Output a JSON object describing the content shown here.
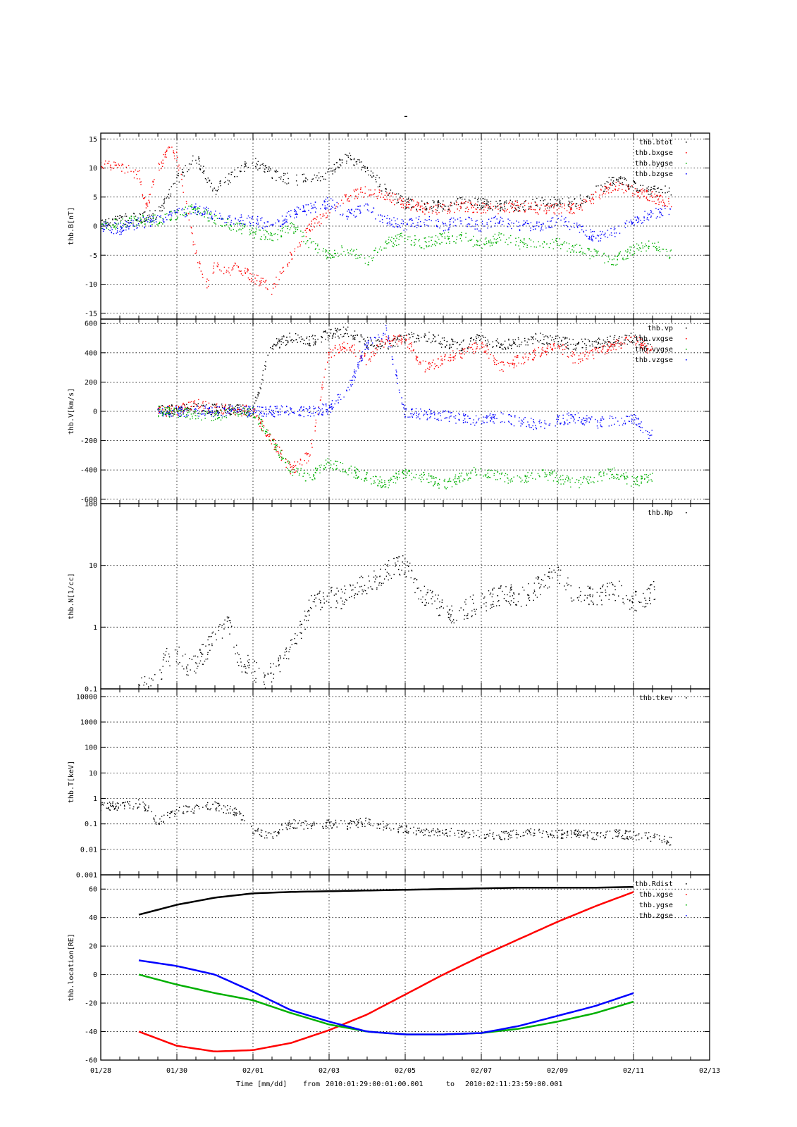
{
  "figure": {
    "top_mark": "-",
    "footer": {
      "time_label": "Time [mm/dd]",
      "from_label": "from",
      "from_value": "2010:01:29:00:01:00.001",
      "to_label": "to",
      "to_value": "2010:02:11:23:59:00.001"
    },
    "x_ticks": [
      "01/28",
      "01/30",
      "02/01",
      "02/03",
      "02/05",
      "02/07",
      "02/09",
      "02/11",
      "02/13"
    ]
  },
  "chart_data": [
    {
      "type": "scatter",
      "ylabel": "thb.B[nT]",
      "ylim": [
        -16,
        16
      ],
      "yticks": [
        -15,
        -10,
        -5,
        0,
        5,
        10,
        15
      ],
      "x_unit": "days since 2010-01-28",
      "grid": true,
      "legend_placement": "top-right",
      "series": [
        {
          "name": "thb.btot",
          "color": "#000000",
          "x": [
            0,
            0.5,
            1,
            1.5,
            2,
            2.5,
            3,
            3.5,
            4,
            4.5,
            5,
            5.5,
            6,
            6.5,
            7,
            7.5,
            8,
            8.5,
            9,
            9.5,
            10,
            10.5,
            11,
            11.5,
            12,
            12.5,
            13,
            13.5,
            14,
            14.5,
            15
          ],
          "y": [
            1,
            1,
            1.5,
            2,
            8,
            12,
            6,
            9,
            11,
            9,
            8,
            8,
            9,
            12,
            10,
            6,
            4,
            3.5,
            3.5,
            4,
            4,
            3.5,
            3.5,
            4,
            4,
            4,
            6,
            8,
            7,
            6,
            6
          ]
        },
        {
          "name": "thb.bxgse",
          "color": "#ff0000",
          "x": [
            0,
            0.5,
            1,
            1.2,
            1.5,
            1.8,
            2,
            2.3,
            2.5,
            2.8,
            3,
            3.3,
            3.6,
            4,
            4.3,
            4.5,
            5,
            5.5,
            6,
            6.5,
            7,
            7.5,
            8,
            8.5,
            9,
            9.5,
            10,
            10.5,
            11,
            11.5,
            12,
            12.5,
            13,
            13.5,
            14,
            14.5,
            15
          ],
          "y": [
            11,
            10,
            9,
            3,
            10,
            13,
            12,
            2,
            -5,
            -10,
            -7,
            -8,
            -7,
            -9,
            -10,
            -11,
            -5,
            0,
            2,
            5,
            6,
            5,
            4,
            3,
            3,
            3.5,
            3,
            3,
            3.5,
            3,
            3,
            3,
            5,
            7,
            6,
            5,
            4
          ]
        },
        {
          "name": "thb.bygse",
          "color": "#00b000",
          "x": [
            0,
            0.5,
            1,
            1.5,
            2,
            2.5,
            3,
            3.5,
            4,
            4.5,
            5,
            5.5,
            6,
            6.5,
            7,
            7.5,
            8,
            8.5,
            9,
            9.5,
            10,
            10.5,
            11,
            11.5,
            12,
            12.5,
            13,
            13.5,
            14,
            14.5,
            15
          ],
          "y": [
            0,
            0.5,
            1,
            1,
            2,
            3,
            1,
            0,
            -1,
            -2,
            0,
            -3,
            -5,
            -4,
            -6,
            -3,
            -2,
            -3,
            -2,
            -2,
            -3,
            -2,
            -3,
            -3,
            -3,
            -4,
            -5,
            -6,
            -4,
            -3,
            -5
          ]
        },
        {
          "name": "thb.bzgse",
          "color": "#0000ff",
          "x": [
            0,
            0.5,
            1,
            1.5,
            2,
            2.5,
            3,
            3.5,
            4,
            4.5,
            5,
            5.5,
            6,
            6.5,
            7,
            7.5,
            8,
            8.5,
            9,
            9.5,
            10,
            10.5,
            11,
            11.5,
            12,
            12.5,
            13,
            13.5,
            14,
            14.5,
            15
          ],
          "y": [
            0,
            -0.5,
            0.5,
            1,
            2,
            3,
            2,
            1,
            1,
            0,
            2,
            3,
            4,
            2,
            3,
            1,
            0,
            1,
            0,
            1,
            0,
            1,
            0,
            0,
            1,
            0,
            -2,
            -1,
            1,
            2,
            3
          ]
        }
      ]
    },
    {
      "type": "scatter",
      "ylabel": "thb.V[km/s]",
      "ylim": [
        -630,
        630
      ],
      "yticks": [
        -600,
        -400,
        -200,
        0,
        200,
        400,
        600
      ],
      "x_unit": "days since 2010-01-28",
      "grid": true,
      "legend_placement": "top-right",
      "series": [
        {
          "name": "thb.vp",
          "color": "#000000",
          "x": [
            1.5,
            2,
            2.5,
            3,
            3.5,
            4,
            4.5,
            5,
            5.5,
            6,
            6.5,
            7,
            7.5,
            8,
            8.5,
            9,
            9.5,
            10,
            10.5,
            11,
            11.5,
            12,
            12.5,
            13,
            13.5,
            14,
            14.5
          ],
          "y": [
            5,
            10,
            20,
            15,
            10,
            5,
            450,
            500,
            480,
            520,
            550,
            470,
            450,
            500,
            520,
            470,
            450,
            500,
            450,
            470,
            500,
            480,
            450,
            470,
            480,
            500,
            450
          ]
        },
        {
          "name": "thb.vxgse",
          "color": "#ff0000",
          "x": [
            1.5,
            2,
            2.5,
            3,
            3.5,
            4,
            4.5,
            5,
            5.5,
            6,
            6.5,
            7,
            7.5,
            8,
            8.5,
            9,
            9.5,
            10,
            10.5,
            11,
            11.5,
            12,
            12.5,
            13,
            13.5,
            14,
            14.5
          ],
          "y": [
            0,
            5,
            50,
            20,
            10,
            0,
            -200,
            -400,
            -300,
            400,
            450,
            350,
            480,
            500,
            300,
            350,
            400,
            450,
            300,
            350,
            400,
            450,
            350,
            400,
            450,
            500,
            400
          ]
        },
        {
          "name": "thb.vygse",
          "color": "#00b000",
          "x": [
            1.5,
            2,
            2.5,
            3,
            3.5,
            4,
            4.5,
            5,
            5.5,
            6,
            6.5,
            7,
            7.5,
            8,
            8.5,
            9,
            9.5,
            10,
            10.5,
            11,
            11.5,
            12,
            12.5,
            13,
            13.5,
            14,
            14.5
          ],
          "y": [
            0,
            -10,
            -20,
            -30,
            -10,
            0,
            -200,
            -400,
            -450,
            -350,
            -400,
            -450,
            -500,
            -420,
            -450,
            -500,
            -450,
            -400,
            -450,
            -480,
            -420,
            -450,
            -500,
            -450,
            -420,
            -480,
            -450
          ]
        },
        {
          "name": "thb.vzgse",
          "color": "#0000ff",
          "x": [
            1.5,
            2,
            2.5,
            3,
            3.5,
            4,
            4.5,
            5,
            5.5,
            6,
            6.5,
            7,
            7.5,
            8,
            8.5,
            9,
            9.5,
            10,
            10.5,
            11,
            11.5,
            12,
            12.5,
            13,
            13.5,
            14,
            14.5
          ],
          "y": [
            0,
            0,
            0,
            0,
            0,
            0,
            0,
            0,
            0,
            20,
            150,
            450,
            550,
            -10,
            -20,
            -30,
            -50,
            -60,
            -40,
            -70,
            -90,
            -60,
            -40,
            -80,
            -60,
            -50,
            -170
          ]
        }
      ]
    },
    {
      "type": "scatter",
      "ylabel": "thb.N[1/cc]",
      "yscale": "log",
      "ylim": [
        0.1,
        100
      ],
      "yticks": [
        0.1,
        1,
        10,
        100
      ],
      "x_unit": "days since 2010-01-28",
      "grid": true,
      "legend_placement": "top-right",
      "series": [
        {
          "name": "thb.Np",
          "color": "#000000",
          "x": [
            1,
            1.5,
            1.7,
            2,
            2.3,
            2.6,
            3,
            3.3,
            3.6,
            4,
            4.3,
            4.6,
            5,
            5.3,
            5.6,
            6,
            6.3,
            6.6,
            7,
            7.3,
            7.6,
            8,
            8.3,
            8.6,
            9,
            9.3,
            9.6,
            10,
            10.3,
            10.6,
            11,
            11.3,
            11.6,
            12,
            12.3,
            12.6,
            13,
            13.3,
            13.6,
            14,
            14.3,
            14.6
          ],
          "y": [
            0.1,
            0.12,
            0.3,
            0.4,
            0.2,
            0.3,
            0.6,
            1.2,
            0.3,
            0.2,
            0.15,
            0.2,
            0.5,
            1.0,
            2.5,
            3,
            2.8,
            4,
            5,
            6,
            9,
            10,
            4,
            3,
            2,
            1.5,
            2,
            2.5,
            3,
            3.5,
            3,
            3.5,
            5,
            7,
            4,
            3.5,
            3,
            3.5,
            4,
            2.5,
            3,
            4
          ]
        }
      ]
    },
    {
      "type": "scatter",
      "ylabel": "thb.T[keV]",
      "yscale": "log",
      "ylim": [
        0.001,
        20000
      ],
      "yticks": [
        0.001,
        0.01,
        0.1,
        1,
        10,
        100,
        1000,
        10000
      ],
      "ytick_labels": [
        "0.001",
        "0.01",
        "0.1",
        "1",
        "10",
        "100",
        "1000",
        "10000"
      ],
      "x_unit": "days since 2010-01-28",
      "grid": true,
      "legend_placement": "top-right",
      "series": [
        {
          "name": "thb.tkev",
          "color": "#000000",
          "x": [
            0,
            0.5,
            1,
            1.5,
            2,
            2.5,
            3,
            3.5,
            4,
            4.5,
            5,
            5.5,
            6,
            6.5,
            7,
            7.5,
            8,
            8.5,
            9,
            9.5,
            10,
            10.5,
            11,
            11.5,
            12,
            12.5,
            13,
            13.5,
            14,
            14.5,
            15
          ],
          "y": [
            0.5,
            0.5,
            0.6,
            0.1,
            0.3,
            0.4,
            0.5,
            0.3,
            0.05,
            0.03,
            0.1,
            0.09,
            0.1,
            0.09,
            0.12,
            0.08,
            0.06,
            0.05,
            0.05,
            0.04,
            0.04,
            0.035,
            0.04,
            0.045,
            0.04,
            0.04,
            0.035,
            0.04,
            0.035,
            0.03,
            0.02
          ]
        }
      ]
    },
    {
      "type": "line",
      "ylabel": "thb.location[RE]",
      "ylim": [
        -60,
        70
      ],
      "yticks": [
        -60,
        -40,
        -20,
        0,
        20,
        40,
        60
      ],
      "x_unit": "days since 2010-01-28",
      "grid": true,
      "legend_placement": "top-right",
      "series": [
        {
          "name": "thb.Rdist",
          "color": "#000000",
          "x": [
            1,
            2,
            3,
            4,
            5,
            6,
            7,
            8,
            9,
            10,
            11,
            12,
            13,
            14
          ],
          "y": [
            42,
            49,
            54,
            57,
            58,
            58.5,
            59,
            59.5,
            60,
            60.5,
            61,
            61,
            61,
            61.5
          ]
        },
        {
          "name": "thb.xgse",
          "color": "#ff0000",
          "x": [
            1,
            2,
            3,
            4,
            5,
            6,
            7,
            8,
            9,
            10,
            11,
            12,
            13,
            14
          ],
          "y": [
            -40,
            -50,
            -54,
            -53,
            -48,
            -39,
            -28,
            -14,
            0,
            13,
            25,
            37,
            48,
            58
          ]
        },
        {
          "name": "thb.ygse",
          "color": "#00b000",
          "x": [
            1,
            2,
            3,
            4,
            5,
            6,
            7,
            8,
            9,
            10,
            11,
            12,
            13,
            14
          ],
          "y": [
            0,
            -7,
            -13,
            -18,
            -27,
            -35,
            -40,
            -42,
            -42,
            -41,
            -38,
            -33,
            -27,
            -19
          ]
        },
        {
          "name": "thb.zgse",
          "color": "#0000ff",
          "x": [
            1,
            2,
            3,
            4,
            5,
            6,
            7,
            8,
            9,
            10,
            11,
            12,
            13,
            14
          ],
          "y": [
            10,
            6,
            0,
            -12,
            -25,
            -33,
            -40,
            -42,
            -42,
            -41,
            -36,
            -29,
            -22,
            -13
          ]
        }
      ]
    }
  ]
}
